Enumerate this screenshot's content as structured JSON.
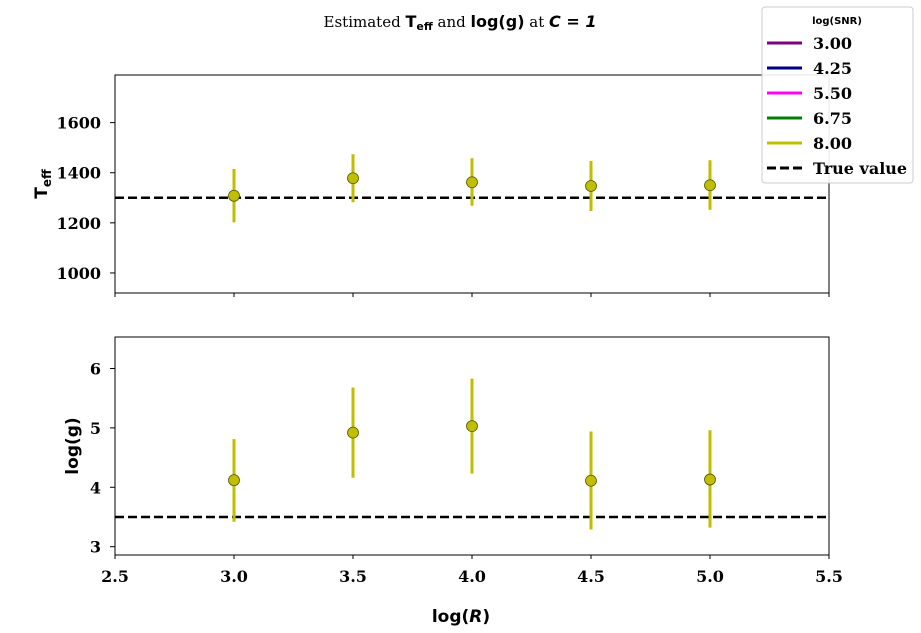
{
  "title": {
    "prefix": "Estimated ",
    "teff_main": "T",
    "teff_sub": "eff",
    "mid": " and ",
    "logg": "log(g)",
    "suffix": " at ",
    "c_expr": "C = 1"
  },
  "legend": {
    "title": "log(SNR)",
    "entries": [
      {
        "label": "3.00",
        "color": "#800080",
        "style": "solid"
      },
      {
        "label": "4.25",
        "color": "#000080",
        "style": "solid"
      },
      {
        "label": "5.50",
        "color": "#ff00ff",
        "style": "solid"
      },
      {
        "label": "6.75",
        "color": "#008000",
        "style": "solid"
      },
      {
        "label": "8.00",
        "color": "#bfbf00",
        "style": "solid"
      },
      {
        "label": "True value",
        "color": "#000000",
        "style": "dashed"
      }
    ]
  },
  "chart_data": [
    {
      "type": "scatter",
      "panel": "top",
      "ylabel_main": "T",
      "ylabel_sub": "eff",
      "xlim": [
        2.5,
        5.5
      ],
      "ylim": [
        920,
        1790
      ],
      "yticks": [
        1000,
        1200,
        1400,
        1600
      ],
      "xticks": [
        2.5,
        3.0,
        3.5,
        4.0,
        4.5,
        5.0,
        5.5
      ],
      "true_value": 1300,
      "series": [
        {
          "name": "8.00",
          "color": "#bfbf00",
          "points": [
            {
              "x": 3.0,
              "y": 1308,
              "lo": 1202,
              "hi": 1415
            },
            {
              "x": 3.5,
              "y": 1378,
              "lo": 1282,
              "hi": 1474
            },
            {
              "x": 4.0,
              "y": 1362,
              "lo": 1268,
              "hi": 1458
            },
            {
              "x": 4.5,
              "y": 1347,
              "lo": 1247,
              "hi": 1447
            },
            {
              "x": 5.0,
              "y": 1350,
              "lo": 1252,
              "hi": 1450
            }
          ]
        }
      ]
    },
    {
      "type": "scatter",
      "panel": "bottom",
      "ylabel": "log(g)",
      "xlabel_prefix": "log(",
      "xlabel_var": "R",
      "xlabel_suffix": ")",
      "xlim": [
        2.5,
        5.5
      ],
      "ylim": [
        2.86,
        6.53
      ],
      "yticks": [
        3,
        4,
        5,
        6
      ],
      "xticks": [
        2.5,
        3.0,
        3.5,
        4.0,
        4.5,
        5.0,
        5.5
      ],
      "xticklabels": [
        "2.5",
        "3.0",
        "3.5",
        "4.0",
        "4.5",
        "5.0",
        "5.5"
      ],
      "true_value": 3.5,
      "series": [
        {
          "name": "8.00",
          "color": "#bfbf00",
          "points": [
            {
              "x": 3.0,
              "y": 4.12,
              "lo": 3.42,
              "hi": 4.81
            },
            {
              "x": 3.5,
              "y": 4.92,
              "lo": 4.16,
              "hi": 5.68
            },
            {
              "x": 4.0,
              "y": 5.03,
              "lo": 4.23,
              "hi": 5.83
            },
            {
              "x": 4.5,
              "y": 4.11,
              "lo": 3.29,
              "hi": 4.94
            },
            {
              "x": 5.0,
              "y": 4.13,
              "lo": 3.32,
              "hi": 4.96
            }
          ]
        }
      ]
    }
  ]
}
